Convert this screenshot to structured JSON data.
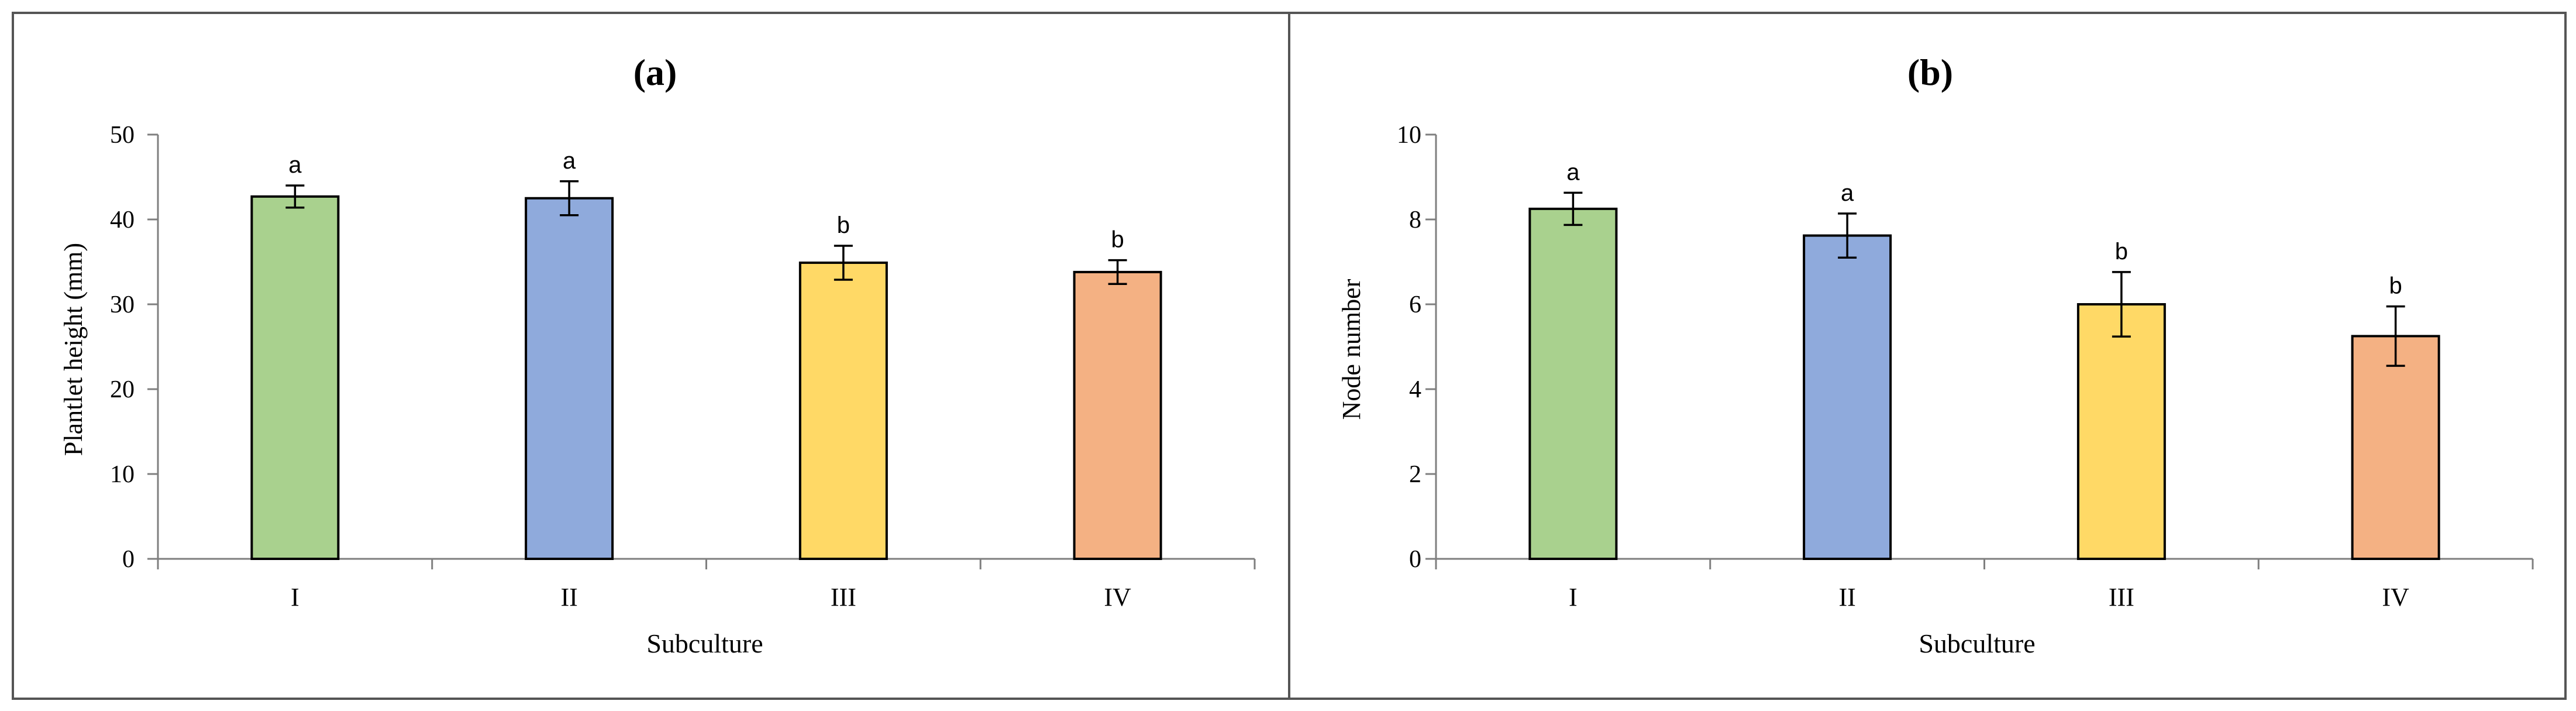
{
  "chart_data": [
    {
      "type": "bar",
      "title": "(a)",
      "xlabel": "Subculture",
      "ylabel": "Plantlet height (mm)",
      "ylim": [
        0,
        50
      ],
      "yticks": [
        "0",
        "10",
        "20",
        "30",
        "40",
        "50"
      ],
      "ytick_values": [
        0,
        10,
        20,
        30,
        40,
        50
      ],
      "grid": false,
      "categories": [
        "I",
        "II",
        "III",
        "IV"
      ],
      "values": [
        42.7,
        42.5,
        34.9,
        33.8
      ],
      "errors": [
        1.3,
        2.0,
        2.0,
        1.4
      ],
      "significance": [
        "a",
        "a",
        "b",
        "b"
      ],
      "colors": [
        "#A9D18E",
        "#8FAADC",
        "#FFD966",
        "#F4B183"
      ]
    },
    {
      "type": "bar",
      "title": "(b)",
      "xlabel": "Subculture",
      "ylabel": "Node number",
      "ylim": [
        0,
        10
      ],
      "yticks": [
        "0",
        "2",
        "4",
        "6",
        "8",
        "10"
      ],
      "ytick_values": [
        0,
        2,
        4,
        6,
        8,
        10
      ],
      "grid": false,
      "categories": [
        "I",
        "II",
        "III",
        "IV"
      ],
      "values": [
        8.25,
        7.62,
        6.0,
        5.25
      ],
      "errors": [
        0.38,
        0.52,
        0.76,
        0.7
      ],
      "significance": [
        "a",
        "a",
        "b",
        "b"
      ],
      "colors": [
        "#A9D18E",
        "#8FAADC",
        "#FFD966",
        "#F4B183"
      ]
    }
  ],
  "style": {
    "bar_stroke": "#000000",
    "panel_border": "#555555"
  }
}
